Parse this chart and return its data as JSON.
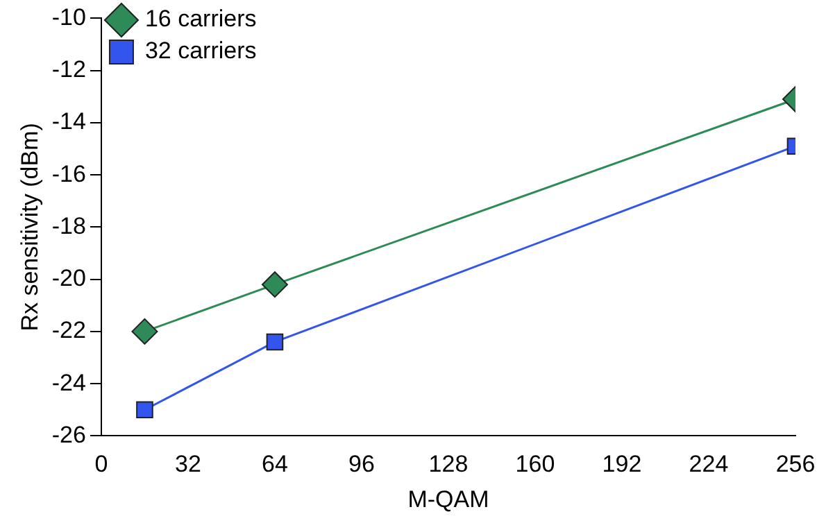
{
  "chart_data": {
    "type": "line",
    "xlabel": "M-QAM",
    "ylabel": "Rx sensitivity (dBm)",
    "x": [
      16,
      64,
      256
    ],
    "series": [
      {
        "name": "16 carriers",
        "color": "#2e8b57",
        "values": [
          -22,
          -20.2,
          -13.1
        ],
        "marker": "diamond"
      },
      {
        "name": "32 carriers",
        "color": "#3355ee",
        "values": [
          -25,
          -22.4,
          -14.9
        ],
        "marker": "square"
      }
    ],
    "xlim": [
      0,
      256
    ],
    "xticks": [
      0,
      32,
      64,
      96,
      128,
      160,
      192,
      224,
      256
    ],
    "ylim": [
      -26,
      -10
    ],
    "yticks": [
      -26,
      -24,
      -22,
      -20,
      -18,
      -16,
      -14,
      -12,
      -10
    ],
    "grid": false,
    "legend": "top left",
    "line_style": "solid"
  }
}
